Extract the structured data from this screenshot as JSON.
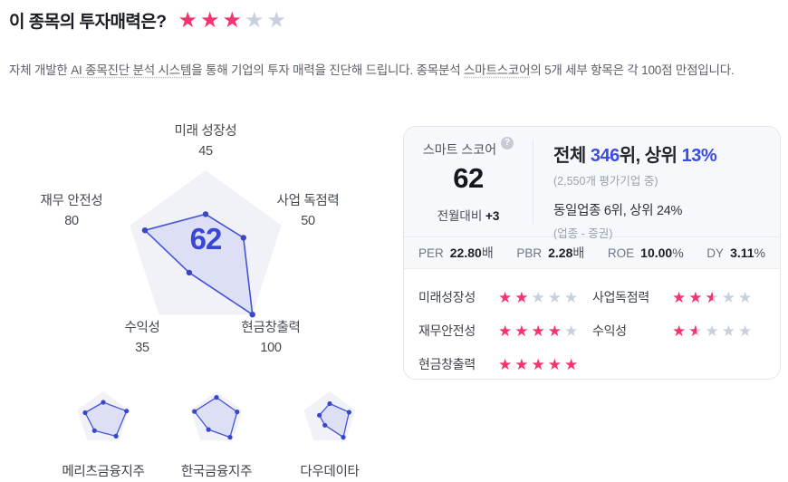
{
  "colors": {
    "accent_blue": "#3b4de0",
    "score_blue": "#3a46d4",
    "star_pink": "#f4346e",
    "star_gray": "#c9d0dd",
    "radar_bg": "#f1f2f8",
    "radar_stroke": "#4553d6",
    "radar_dot": "#3a46c8",
    "radar_fill": "rgba(99,112,221,0.14)"
  },
  "icons": {
    "star": "★",
    "help": "?"
  },
  "page": {
    "title": "이 종목의 투자매력은?",
    "title_rating": 3,
    "subtitle": {
      "seg1": "자체 개발한 ",
      "term1": "AI 종목진단 분석 시스템",
      "seg2": "을 통해 기업의 투자 매력을 진단해 드립니다. 종목분석 ",
      "term2": "스마트스코어",
      "seg3": "의 5개 세부 항목은 각 100점 만점입니다."
    }
  },
  "chart_data": {
    "type": "radar",
    "title": "종목분석 스마트스코어",
    "max": 100,
    "center_score": "62",
    "legend_position": "none",
    "grid": false,
    "axes": [
      {
        "label": "미래 성장성",
        "value": 45
      },
      {
        "label": "사업 독점력",
        "value": 50
      },
      {
        "label": "현금창출력",
        "value": 100
      },
      {
        "label": "수익성",
        "value": 35
      },
      {
        "label": "재무 안전성",
        "value": 80
      }
    ]
  },
  "score_card": {
    "score_label": "스마트 스코어",
    "score": "62",
    "month_change_label": "전월대비",
    "month_change_value": "+3",
    "rank_line": {
      "prefix": "전체 ",
      "rank": "346",
      "middle": "위, 상위 ",
      "percent": "13%"
    },
    "rank_note": "(2,550개 평가기업 중)",
    "industry_line": "동일업종 6위, 상위 24%",
    "industry_note": "(업종 - 증권)",
    "metrics": [
      {
        "label": "PER",
        "value": "22.80",
        "unit": "배"
      },
      {
        "label": "PBR",
        "value": "2.28",
        "unit": "배"
      },
      {
        "label": "ROE",
        "value": "10.00",
        "unit": "%"
      },
      {
        "label": "DY",
        "value": "3.11",
        "unit": "%"
      }
    ],
    "ratings": [
      {
        "label": "미래성장성",
        "stars": 2
      },
      {
        "label": "사업독점력",
        "stars": 2.5
      },
      {
        "label": "재무안전성",
        "stars": 4
      },
      {
        "label": "수익성",
        "stars": 1.5
      },
      {
        "label": "현금창출력",
        "stars": 5
      }
    ]
  },
  "peers": [
    {
      "name": "메리츠금융지주",
      "values": [
        60,
        90,
        80,
        55,
        70
      ]
    },
    {
      "name": "한국금융지주",
      "values": [
        78,
        80,
        85,
        50,
        85
      ]
    },
    {
      "name": "다우데이타",
      "values": [
        55,
        75,
        85,
        30,
        40
      ]
    }
  ]
}
